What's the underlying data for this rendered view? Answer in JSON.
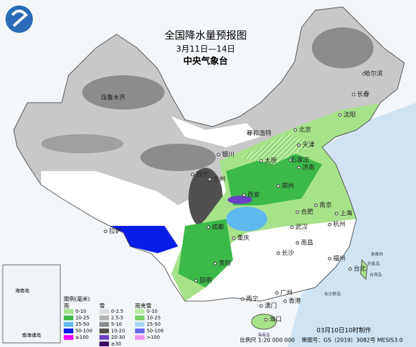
{
  "header": {
    "title": "全国降水量预报图",
    "date": "3月11日—14日",
    "agency": "中央气象台"
  },
  "cities": [
    "乌鲁木齐",
    "哈尔滨",
    "长春",
    "沈阳",
    "呼和浩特",
    "北京",
    "天津",
    "石家庄",
    "太原",
    "济南",
    "银川",
    "西宁",
    "兰州",
    "郑州",
    "西安",
    "合肥",
    "南京",
    "上海",
    "杭州",
    "武汉",
    "成都",
    "重庆",
    "南昌",
    "长沙",
    "福州",
    "台北",
    "贵阳",
    "昆明",
    "南宁",
    "广州",
    "澳门",
    "香港",
    "海口",
    "拉萨"
  ],
  "islands": [
    "赤尾屿",
    "钓鱼岛",
    "台湾岛",
    "东沙群岛",
    "海南岛"
  ],
  "inset": {
    "title": "南海诸岛",
    "label": "海南岛",
    "scale": "南海诸岛"
  },
  "legend": {
    "title": "图例(毫米)",
    "rain": {
      "title": "雨",
      "items": [
        {
          "label": "0-10",
          "color": "#a6e28a"
        },
        {
          "label": "10-25",
          "color": "#3cb94a"
        },
        {
          "label": "25-50",
          "color": "#60b8f0"
        },
        {
          "label": "50-100",
          "color": "#0a1de8"
        },
        {
          "label": "≥100",
          "color": "#f203f2"
        }
      ]
    },
    "snow": {
      "title": "雪",
      "items": [
        {
          "label": "0-2.5",
          "color": "#dcdcdc"
        },
        {
          "label": "2.5-5",
          "color": "#b4b4b4"
        },
        {
          "label": "5-10",
          "color": "#8c8c8c"
        },
        {
          "label": "10-20",
          "color": "#505050"
        },
        {
          "label": "20-30",
          "color": "#6a3fc8"
        },
        {
          "label": "≥30",
          "color": "#3a0a6a"
        }
      ]
    },
    "sleet": {
      "title": "雨夹雪",
      "items": [
        {
          "label": "0-10",
          "color": "#b8eea0"
        },
        {
          "label": "10-25",
          "color": "#7ad26a"
        },
        {
          "label": "25-50",
          "color": "#a8d8f8"
        },
        {
          "label": "50-100",
          "color": "#6a6af0"
        },
        {
          "label": ">100",
          "color": "#f090f0"
        }
      ]
    }
  },
  "footer": {
    "made": "03月10日10时制作",
    "scale": "比例尺 1:20 000 000",
    "review": "审图号：GS（2019）3082号 MESIS3.0"
  }
}
